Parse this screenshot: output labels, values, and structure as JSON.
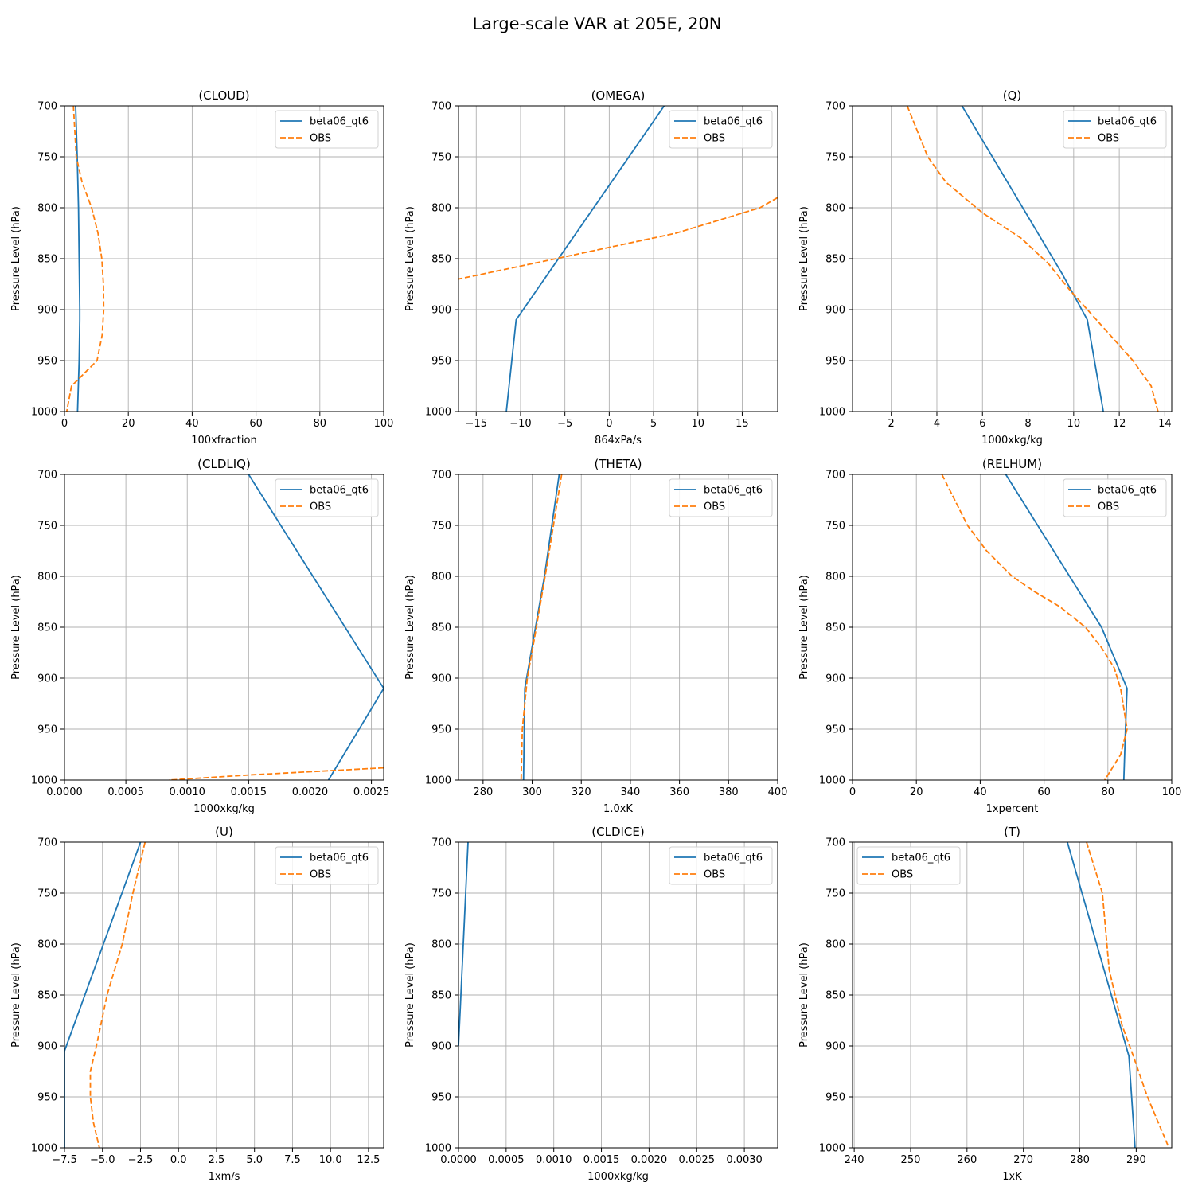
{
  "figure": {
    "title": "Large-scale VAR at 205E, 20N"
  },
  "chart_data": [
    {
      "type": "line",
      "title": "(CLOUD)",
      "xlabel": "100xfraction",
      "ylabel": "Pressure Level (hPa)",
      "xlim": [
        0,
        100
      ],
      "ylim": [
        1000,
        700
      ],
      "xticks": [
        0,
        20,
        40,
        60,
        80,
        100
      ],
      "xtick_labels": [
        "0",
        "20",
        "40",
        "60",
        "80",
        "100"
      ],
      "yticks": [
        700,
        750,
        800,
        850,
        900,
        950,
        1000
      ],
      "ytick_labels": [
        "700",
        "750",
        "800",
        "850",
        "900",
        "950",
        "1000"
      ],
      "grid": true,
      "legend_loc": "upper right",
      "series": [
        {
          "name": "beta06_qt6",
          "color": "#1f77b4",
          "dash": false,
          "x": [
            3.5,
            4.0,
            4.4,
            4.6,
            4.8,
            4.8,
            4.6,
            4.1
          ],
          "y": [
            700,
            750,
            800,
            850,
            900,
            910,
            950,
            1000
          ]
        },
        {
          "name": "OBS",
          "color": "#ff7f0e",
          "dash": true,
          "x": [
            2.8,
            3.7,
            5.5,
            8.5,
            10.5,
            11.7,
            12.2,
            12.3,
            11.8,
            10.2,
            2.2,
            0.7
          ],
          "y": [
            700,
            750,
            775,
            800,
            825,
            850,
            875,
            900,
            925,
            950,
            975,
            1000
          ]
        }
      ]
    },
    {
      "type": "line",
      "title": "(OMEGA)",
      "xlabel": "864xPa/s",
      "ylabel": "Pressure Level (hPa)",
      "xlim": [
        -17,
        19
      ],
      "ylim": [
        1000,
        700
      ],
      "xticks": [
        -15,
        -10,
        -5,
        0,
        5,
        10,
        15
      ],
      "xtick_labels": [
        "−15",
        "−10",
        "−5",
        "0",
        "5",
        "10",
        "15"
      ],
      "yticks": [
        700,
        750,
        800,
        850,
        900,
        950,
        1000
      ],
      "ytick_labels": [
        "700",
        "750",
        "800",
        "850",
        "900",
        "950",
        "1000"
      ],
      "grid": true,
      "legend_loc": "upper right",
      "series": [
        {
          "name": "beta06_qt6",
          "color": "#1f77b4",
          "dash": false,
          "x": [
            6.2,
            -10.5,
            -11.6
          ],
          "y": [
            700,
            910,
            1000
          ]
        },
        {
          "name": "OBS",
          "color": "#ff7f0e",
          "dash": true,
          "x": [
            19.0,
            17.0,
            7.5,
            -6.0,
            -17.0
          ],
          "y": [
            790,
            800,
            825,
            850,
            870
          ]
        }
      ]
    },
    {
      "type": "line",
      "title": "(Q)",
      "xlabel": "1000xkg/kg",
      "ylabel": "Pressure Level (hPa)",
      "xlim": [
        0.3,
        14.3
      ],
      "ylim": [
        1000,
        700
      ],
      "xticks": [
        2,
        4,
        6,
        8,
        10,
        12,
        14
      ],
      "xtick_labels": [
        "2",
        "4",
        "6",
        "8",
        "10",
        "12",
        "14"
      ],
      "yticks": [
        700,
        750,
        800,
        850,
        900,
        950,
        1000
      ],
      "ytick_labels": [
        "700",
        "750",
        "800",
        "850",
        "900",
        "950",
        "1000"
      ],
      "grid": true,
      "legend_loc": "upper right",
      "series": [
        {
          "name": "beta06_qt6",
          "color": "#1f77b4",
          "dash": false,
          "x": [
            5.1,
            9.5,
            10.6,
            11.3
          ],
          "y": [
            700,
            865,
            910,
            1000
          ]
        },
        {
          "name": "OBS",
          "color": "#ff7f0e",
          "dash": true,
          "x": [
            2.7,
            3.6,
            4.4,
            6.0,
            7.7,
            8.9,
            9.8,
            11.0,
            12.6,
            13.4,
            13.7
          ],
          "y": [
            700,
            750,
            775,
            805,
            830,
            855,
            880,
            910,
            950,
            975,
            1000
          ]
        }
      ]
    },
    {
      "type": "line",
      "title": "(CLDLIQ)",
      "xlabel": "1000xkg/kg",
      "ylabel": "Pressure Level (hPa)",
      "xlim": [
        0,
        0.0026
      ],
      "ylim": [
        1000,
        700
      ],
      "xticks": [
        0,
        0.0005,
        0.001,
        0.0015,
        0.002,
        0.0025
      ],
      "xtick_labels": [
        "0.0000",
        "0.0005",
        "0.0010",
        "0.0015",
        "0.0020",
        "0.0025"
      ],
      "yticks": [
        700,
        750,
        800,
        850,
        900,
        950,
        1000
      ],
      "ytick_labels": [
        "700",
        "750",
        "800",
        "850",
        "900",
        "950",
        "1000"
      ],
      "grid": true,
      "legend_loc": "upper right",
      "series": [
        {
          "name": "beta06_qt6",
          "color": "#1f77b4",
          "dash": false,
          "x": [
            0.0015,
            0.0026,
            0.00215
          ],
          "y": [
            700,
            910,
            1000
          ]
        },
        {
          "name": "OBS",
          "color": "#ff7f0e",
          "dash": true,
          "x": [
            0.0026,
            0.0015,
            0.00085
          ],
          "y": [
            988,
            995,
            1000
          ]
        }
      ]
    },
    {
      "type": "line",
      "title": "(THETA)",
      "xlabel": "1.0xK",
      "ylabel": "Pressure Level (hPa)",
      "xlim": [
        270,
        400
      ],
      "ylim": [
        1000,
        700
      ],
      "xticks": [
        280,
        300,
        320,
        340,
        360,
        380,
        400
      ],
      "xtick_labels": [
        "280",
        "300",
        "320",
        "340",
        "360",
        "380",
        "400"
      ],
      "yticks": [
        700,
        750,
        800,
        850,
        900,
        950,
        1000
      ],
      "ytick_labels": [
        "700",
        "750",
        "800",
        "850",
        "900",
        "950",
        "1000"
      ],
      "grid": true,
      "legend_loc": "upper right",
      "series": [
        {
          "name": "beta06_qt6",
          "color": "#1f77b4",
          "dash": false,
          "x": [
            311,
            305,
            297,
            296.5
          ],
          "y": [
            700,
            800,
            910,
            1000
          ]
        },
        {
          "name": "OBS",
          "color": "#ff7f0e",
          "dash": true,
          "x": [
            312,
            306,
            301,
            298,
            296,
            295.5
          ],
          "y": [
            700,
            790,
            860,
            900,
            950,
            1000
          ]
        }
      ]
    },
    {
      "type": "line",
      "title": "(RELHUM)",
      "xlabel": "1xpercent",
      "ylabel": "Pressure Level (hPa)",
      "xlim": [
        0,
        100
      ],
      "ylim": [
        1000,
        700
      ],
      "xticks": [
        0,
        20,
        40,
        60,
        80,
        100
      ],
      "xtick_labels": [
        "0",
        "20",
        "40",
        "60",
        "80",
        "100"
      ],
      "yticks": [
        700,
        750,
        800,
        850,
        900,
        950,
        1000
      ],
      "ytick_labels": [
        "700",
        "750",
        "800",
        "850",
        "900",
        "950",
        "1000"
      ],
      "grid": true,
      "legend_loc": "upper right",
      "series": [
        {
          "name": "beta06_qt6",
          "color": "#1f77b4",
          "dash": false,
          "x": [
            48,
            78,
            86,
            85.5,
            85
          ],
          "y": [
            700,
            850,
            910,
            950,
            1000
          ]
        },
        {
          "name": "OBS",
          "color": "#ff7f0e",
          "dash": true,
          "x": [
            28,
            36,
            42,
            50,
            57,
            65,
            73,
            78,
            82,
            84,
            86,
            84,
            79
          ],
          "y": [
            700,
            750,
            775,
            800,
            815,
            830,
            850,
            870,
            890,
            910,
            950,
            975,
            1000
          ]
        }
      ]
    },
    {
      "type": "line",
      "title": "(U)",
      "xlabel": "1xm/s",
      "ylabel": "Pressure Level (hPa)",
      "xlim": [
        -7.5,
        13.5
      ],
      "ylim": [
        1000,
        700
      ],
      "xticks": [
        -7.5,
        -5,
        -2.5,
        0,
        2.5,
        5,
        7.5,
        10,
        12.5
      ],
      "xtick_labels": [
        "−7.5",
        "−5.0",
        "−2.5",
        "0.0",
        "2.5",
        "5.0",
        "7.5",
        "10.0",
        "12.5"
      ],
      "yticks": [
        700,
        750,
        800,
        850,
        900,
        950,
        1000
      ],
      "ytick_labels": [
        "700",
        "750",
        "800",
        "850",
        "900",
        "950",
        "1000"
      ],
      "grid": true,
      "legend_loc": "upper right",
      "series": [
        {
          "name": "beta06_qt6",
          "color": "#1f77b4",
          "dash": false,
          "x": [
            -2.5,
            -7.5,
            -7.5
          ],
          "y": [
            700,
            905,
            1000
          ]
        },
        {
          "name": "OBS",
          "color": "#ff7f0e",
          "dash": true,
          "x": [
            -2.2,
            -3.0,
            -3.7,
            -4.7,
            -5.4,
            -5.8,
            -5.8,
            -5.6,
            -5.2
          ],
          "y": [
            700,
            750,
            800,
            850,
            900,
            925,
            950,
            975,
            1000
          ]
        }
      ]
    },
    {
      "type": "line",
      "title": "(CLDICE)",
      "xlabel": "1000xkg/kg",
      "ylabel": "Pressure Level (hPa)",
      "xlim": [
        0,
        0.00335
      ],
      "ylim": [
        1000,
        700
      ],
      "xticks": [
        0,
        0.0005,
        0.001,
        0.0015,
        0.002,
        0.0025,
        0.003
      ],
      "xtick_labels": [
        "0.0000",
        "0.0005",
        "0.0010",
        "0.0015",
        "0.0020",
        "0.0025",
        "0.0030"
      ],
      "yticks": [
        700,
        750,
        800,
        850,
        900,
        950,
        1000
      ],
      "ytick_labels": [
        "700",
        "750",
        "800",
        "850",
        "900",
        "950",
        "1000"
      ],
      "grid": true,
      "legend_loc": "upper right",
      "series": [
        {
          "name": "beta06_qt6",
          "color": "#1f77b4",
          "dash": false,
          "x": [
            0.0001,
            0.0
          ],
          "y": [
            700,
            900
          ]
        },
        {
          "name": "OBS",
          "color": "#ff7f0e",
          "dash": true,
          "x": [],
          "y": []
        }
      ]
    },
    {
      "type": "line",
      "title": "(T)",
      "xlabel": "1xK",
      "ylabel": "Pressure Level (hPa)",
      "xlim": [
        239.7,
        296.3
      ],
      "ylim": [
        1000,
        700
      ],
      "xticks": [
        240,
        250,
        260,
        270,
        280,
        290
      ],
      "xtick_labels": [
        "240",
        "250",
        "260",
        "270",
        "280",
        "290"
      ],
      "yticks": [
        700,
        750,
        800,
        850,
        900,
        950,
        1000
      ],
      "ytick_labels": [
        "700",
        "750",
        "800",
        "850",
        "900",
        "950",
        "1000"
      ],
      "grid": true,
      "legend_loc": "upper left",
      "series": [
        {
          "name": "beta06_qt6",
          "color": "#1f77b4",
          "dash": false,
          "x": [
            277.8,
            288.7,
            289.8
          ],
          "y": [
            700,
            910,
            1000
          ]
        },
        {
          "name": "OBS",
          "color": "#ff7f0e",
          "dash": true,
          "x": [
            281.2,
            284.0,
            285.2,
            287.5,
            289.5,
            292.0,
            295.8
          ],
          "y": [
            700,
            750,
            825,
            880,
            910,
            950,
            1000
          ]
        }
      ]
    }
  ]
}
